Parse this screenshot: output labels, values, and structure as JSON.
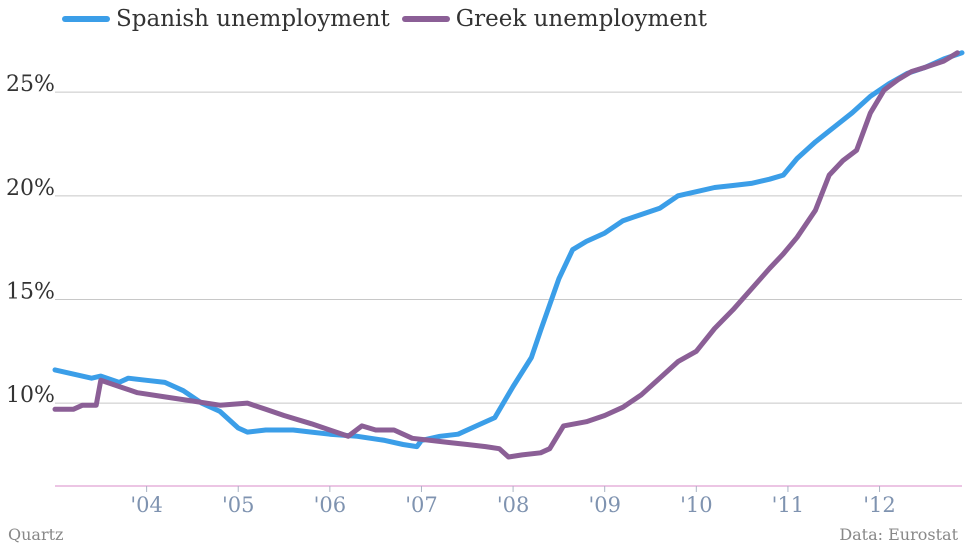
{
  "chart_data": {
    "type": "line",
    "title": "",
    "xlabel": "",
    "ylabel": "",
    "xlim": [
      2003.0,
      2012.9
    ],
    "ylim": [
      6.0,
      28.0
    ],
    "y_ticks": [
      {
        "value": 10,
        "label": "10%"
      },
      {
        "value": 15,
        "label": "15%"
      },
      {
        "value": 20,
        "label": "20%"
      },
      {
        "value": 25,
        "label": "25%"
      }
    ],
    "x_ticks": [
      {
        "value": 2004,
        "label": "'04"
      },
      {
        "value": 2005,
        "label": "'05"
      },
      {
        "value": 2006,
        "label": "'06"
      },
      {
        "value": 2007,
        "label": "'07"
      },
      {
        "value": 2008,
        "label": "'08"
      },
      {
        "value": 2009,
        "label": "'09"
      },
      {
        "value": 2010,
        "label": "'10"
      },
      {
        "value": 2011,
        "label": "'11"
      },
      {
        "value": 2012,
        "label": "'12"
      }
    ],
    "grid": true,
    "legend_position": "top-left",
    "series": [
      {
        "name": "Spanish unemployment",
        "color": "#3b9ee8",
        "points": [
          [
            2003.0,
            11.6
          ],
          [
            2003.2,
            11.4
          ],
          [
            2003.4,
            11.2
          ],
          [
            2003.5,
            11.3
          ],
          [
            2003.7,
            11.0
          ],
          [
            2003.8,
            11.2
          ],
          [
            2004.0,
            11.1
          ],
          [
            2004.2,
            11.0
          ],
          [
            2004.4,
            10.6
          ],
          [
            2004.6,
            10.0
          ],
          [
            2004.8,
            9.6
          ],
          [
            2005.0,
            8.8
          ],
          [
            2005.1,
            8.6
          ],
          [
            2005.3,
            8.7
          ],
          [
            2005.6,
            8.7
          ],
          [
            2005.8,
            8.6
          ],
          [
            2006.0,
            8.5
          ],
          [
            2006.3,
            8.4
          ],
          [
            2006.6,
            8.2
          ],
          [
            2006.8,
            8.0
          ],
          [
            2006.95,
            7.9
          ],
          [
            2007.0,
            8.2
          ],
          [
            2007.2,
            8.4
          ],
          [
            2007.4,
            8.5
          ],
          [
            2007.6,
            8.9
          ],
          [
            2007.8,
            9.3
          ],
          [
            2008.0,
            10.8
          ],
          [
            2008.2,
            12.2
          ],
          [
            2008.3,
            13.5
          ],
          [
            2008.5,
            16.0
          ],
          [
            2008.65,
            17.4
          ],
          [
            2008.8,
            17.8
          ],
          [
            2009.0,
            18.2
          ],
          [
            2009.2,
            18.8
          ],
          [
            2009.4,
            19.1
          ],
          [
            2009.6,
            19.4
          ],
          [
            2009.8,
            20.0
          ],
          [
            2010.0,
            20.2
          ],
          [
            2010.2,
            20.4
          ],
          [
            2010.4,
            20.5
          ],
          [
            2010.6,
            20.6
          ],
          [
            2010.8,
            20.8
          ],
          [
            2010.95,
            21.0
          ],
          [
            2011.1,
            21.8
          ],
          [
            2011.3,
            22.6
          ],
          [
            2011.5,
            23.3
          ],
          [
            2011.7,
            24.0
          ],
          [
            2011.9,
            24.8
          ],
          [
            2012.1,
            25.4
          ],
          [
            2012.3,
            25.9
          ],
          [
            2012.5,
            26.2
          ],
          [
            2012.7,
            26.6
          ],
          [
            2012.9,
            26.9
          ]
        ]
      },
      {
        "name": "Greek unemployment",
        "color": "#8b5f96",
        "points": [
          [
            2003.0,
            9.7
          ],
          [
            2003.2,
            9.7
          ],
          [
            2003.3,
            9.9
          ],
          [
            2003.45,
            9.9
          ],
          [
            2003.5,
            11.1
          ],
          [
            2003.7,
            10.8
          ],
          [
            2003.9,
            10.5
          ],
          [
            2004.2,
            10.3
          ],
          [
            2004.5,
            10.1
          ],
          [
            2004.8,
            9.9
          ],
          [
            2005.1,
            10.0
          ],
          [
            2005.3,
            9.7
          ],
          [
            2005.5,
            9.4
          ],
          [
            2005.8,
            9.0
          ],
          [
            2006.0,
            8.7
          ],
          [
            2006.2,
            8.4
          ],
          [
            2006.35,
            8.9
          ],
          [
            2006.5,
            8.7
          ],
          [
            2006.7,
            8.7
          ],
          [
            2006.9,
            8.3
          ],
          [
            2007.1,
            8.2
          ],
          [
            2007.3,
            8.1
          ],
          [
            2007.5,
            8.0
          ],
          [
            2007.7,
            7.9
          ],
          [
            2007.85,
            7.8
          ],
          [
            2007.95,
            7.4
          ],
          [
            2008.1,
            7.5
          ],
          [
            2008.3,
            7.6
          ],
          [
            2008.4,
            7.8
          ],
          [
            2008.55,
            8.9
          ],
          [
            2008.8,
            9.1
          ],
          [
            2009.0,
            9.4
          ],
          [
            2009.2,
            9.8
          ],
          [
            2009.4,
            10.4
          ],
          [
            2009.6,
            11.2
          ],
          [
            2009.8,
            12.0
          ],
          [
            2010.0,
            12.5
          ],
          [
            2010.2,
            13.6
          ],
          [
            2010.4,
            14.5
          ],
          [
            2010.6,
            15.5
          ],
          [
            2010.8,
            16.5
          ],
          [
            2010.95,
            17.2
          ],
          [
            2011.1,
            18.0
          ],
          [
            2011.3,
            19.3
          ],
          [
            2011.45,
            21.0
          ],
          [
            2011.6,
            21.7
          ],
          [
            2011.75,
            22.2
          ],
          [
            2011.9,
            24.0
          ],
          [
            2012.05,
            25.1
          ],
          [
            2012.2,
            25.6
          ],
          [
            2012.35,
            26.0
          ],
          [
            2012.5,
            26.2
          ],
          [
            2012.7,
            26.5
          ],
          [
            2012.85,
            26.9
          ]
        ]
      }
    ]
  },
  "footer": {
    "source_left": "Quartz",
    "source_right": "Data: Eurostat"
  }
}
